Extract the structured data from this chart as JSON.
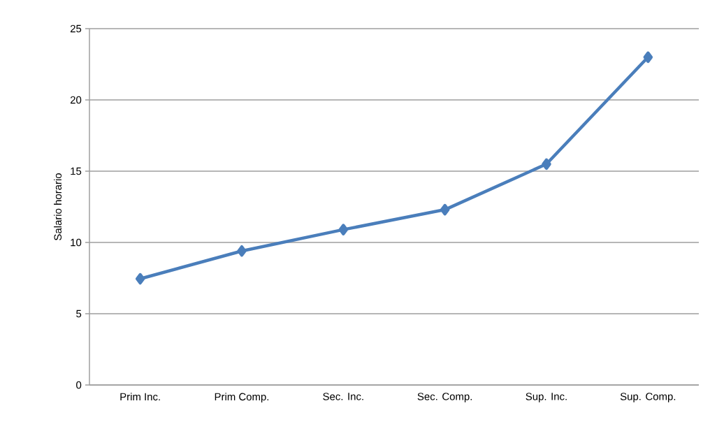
{
  "chart_data": {
    "type": "line",
    "ylabel": "Salario horario",
    "categories": [
      "Prim Inc.",
      "Prim Comp.",
      "Sec. Inc.",
      "Sec. Comp.",
      "Sup. Inc.",
      "Sup. Comp."
    ],
    "series": [
      {
        "color": "#4a7ebb",
        "values": [
          7.45,
          9.4,
          10.9,
          12.3,
          15.5,
          23.0
        ]
      }
    ],
    "ylim": [
      0,
      25
    ],
    "yticks": [
      0,
      5,
      10,
      15,
      20,
      25
    ],
    "grid": "y",
    "marker": "diamond",
    "line_style": "solid"
  }
}
